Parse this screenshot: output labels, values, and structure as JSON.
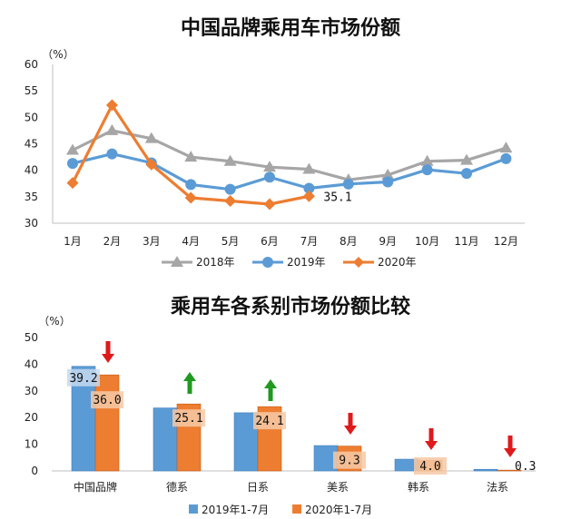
{
  "chart_data": [
    {
      "type": "line",
      "title": "中国品牌乘用车市场份额",
      "unit_label": "（%）",
      "categories": [
        "1月",
        "2月",
        "3月",
        "4月",
        "5月",
        "6月",
        "7月",
        "8月",
        "9月",
        "10月",
        "11月",
        "12月"
      ],
      "ylim": [
        30,
        60
      ],
      "yticks": [
        30,
        35,
        40,
        45,
        50,
        55,
        60
      ],
      "series": [
        {
          "name": "2018年",
          "color": "#a6a6a6",
          "marker": "triangle",
          "values": [
            43.8,
            47.5,
            46.0,
            42.5,
            41.7,
            40.6,
            40.2,
            38.2,
            39.1,
            41.7,
            41.9,
            44.2
          ]
        },
        {
          "name": "2019年",
          "color": "#5b9bd5",
          "marker": "circle",
          "values": [
            41.3,
            43.1,
            41.4,
            37.3,
            36.4,
            38.7,
            36.6,
            37.4,
            37.8,
            40.1,
            39.4,
            42.2
          ]
        },
        {
          "name": "2020年",
          "color": "#ed7d31",
          "marker": "diamond",
          "values": [
            37.6,
            52.3,
            41.1,
            34.8,
            34.2,
            33.6,
            35.1,
            null,
            null,
            null,
            null,
            null
          ]
        }
      ],
      "annotations": [
        {
          "series": 2,
          "index": 6,
          "text": "35.1"
        }
      ],
      "legend_position": "bottom"
    },
    {
      "type": "bar",
      "title": "乘用车各系别市场份额比较",
      "unit_label": "（%）",
      "categories": [
        "中国品牌",
        "德系",
        "日系",
        "美系",
        "韩系",
        "法系"
      ],
      "ylim": [
        0,
        50
      ],
      "yticks": [
        0,
        10,
        20,
        30,
        40,
        50
      ],
      "series": [
        {
          "name": "2019年1-7月",
          "color": "#5b9bd5",
          "values": [
            39.2,
            23.6,
            21.8,
            9.5,
            4.4,
            0.6
          ]
        },
        {
          "name": "2020年1-7月",
          "color": "#ed7d31",
          "values": [
            36.0,
            25.1,
            24.1,
            9.3,
            4.0,
            0.3
          ]
        }
      ],
      "data_labels": [
        {
          "series": 0,
          "index": 0,
          "text": "39.2"
        },
        {
          "series": 1,
          "index": 0,
          "text": "36.0"
        },
        {
          "series": 1,
          "index": 1,
          "text": "25.1"
        },
        {
          "series": 1,
          "index": 2,
          "text": "24.1"
        },
        {
          "series": 1,
          "index": 3,
          "text": "9.3"
        },
        {
          "series": 1,
          "index": 4,
          "text": "4.0"
        },
        {
          "series": 1,
          "index": 5,
          "text": "0.3"
        }
      ],
      "trend_arrows": [
        "down",
        "up",
        "up",
        "down",
        "down",
        "down"
      ],
      "arrow_colors": {
        "up": "#1e9a1e",
        "down": "#e01a1a"
      },
      "legend_position": "bottom"
    }
  ]
}
